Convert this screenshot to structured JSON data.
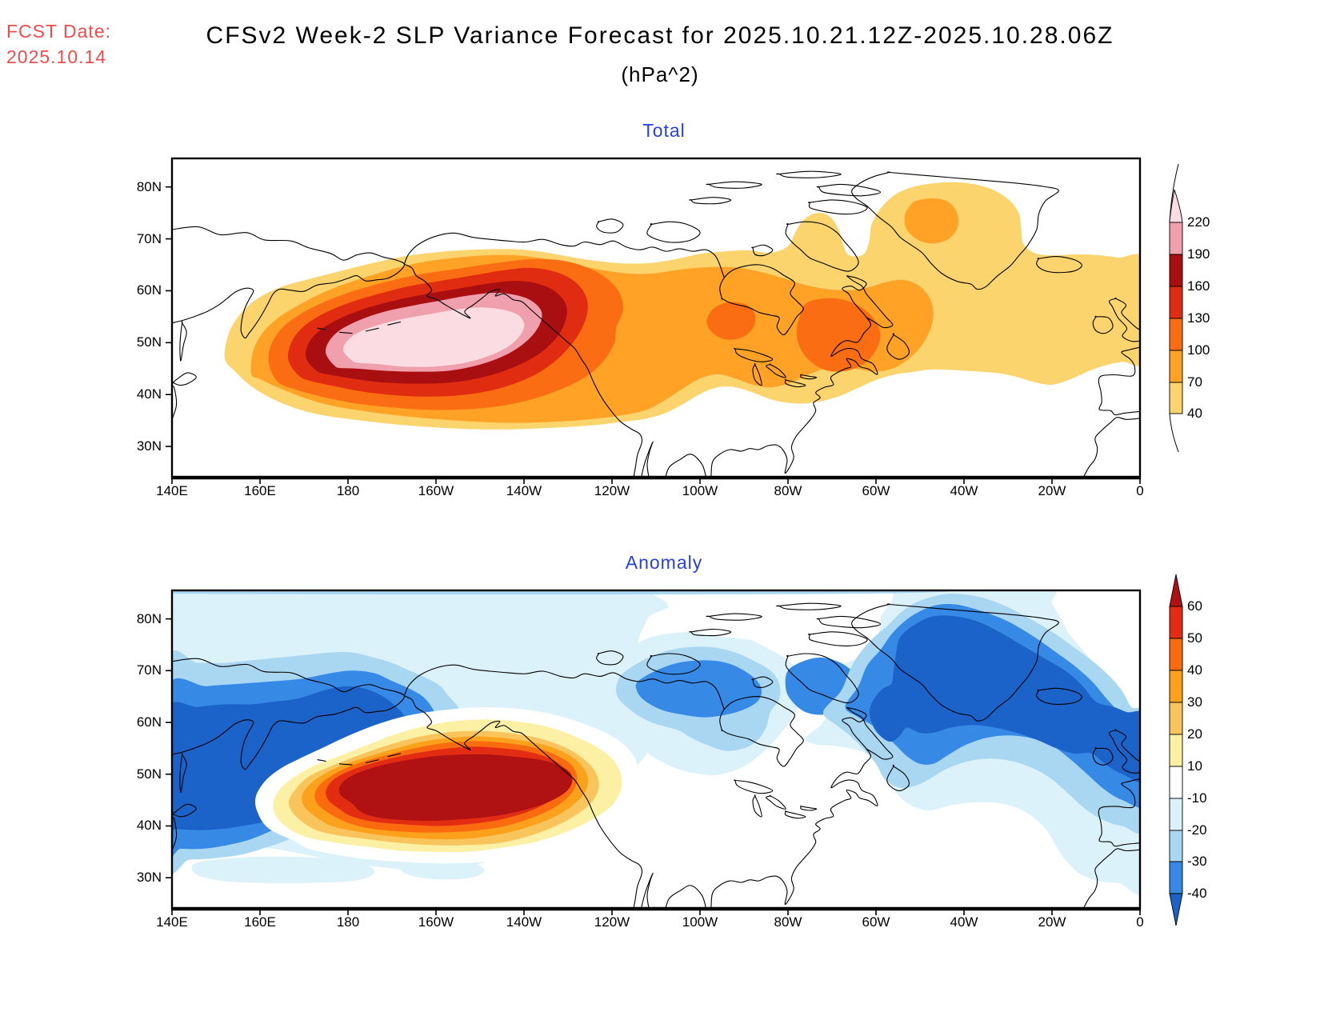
{
  "header": {
    "fcst_label": "FCST Date:",
    "fcst_date": "2025.10.14",
    "title": "CFSv2 Week-2 SLP Variance Forecast for 2025.10.21.12Z-2025.10.28.06Z",
    "subtitle": "(hPa^2)"
  },
  "colors": {
    "fcst_red": "#F34B4B",
    "panel_title_blue": "#2840E0",
    "coastline": "#000000",
    "frame": "#000000"
  },
  "panels": [
    {
      "title": "Total",
      "lat_tick_labels": [
        "80N",
        "70N",
        "60N",
        "50N",
        "40N",
        "30N"
      ],
      "lat_tick_values": [
        80,
        70,
        60,
        50,
        40,
        30
      ],
      "lon_tick_labels": [
        "140E",
        "160E",
        "180",
        "160W",
        "140W",
        "120W",
        "100W",
        "80W",
        "60W",
        "40W",
        "20W",
        "0"
      ],
      "lon_tick_values": [
        140,
        160,
        180,
        200,
        220,
        240,
        260,
        280,
        300,
        320,
        340,
        360
      ],
      "colorbar": {
        "labels": [
          "220",
          "190",
          "160",
          "130",
          "100",
          "70",
          "40"
        ],
        "segment_colors": [
          "#F0A0AC",
          "#A90F10",
          "#E02C10",
          "#FB6D12",
          "#FFA226",
          "#FBD46E"
        ],
        "taper_color": "#FADCE2",
        "end_style": "curved-taper"
      }
    },
    {
      "title": "Anomaly",
      "lat_tick_labels": [
        "80N",
        "70N",
        "60N",
        "50N",
        "40N",
        "30N"
      ],
      "lat_tick_values": [
        80,
        70,
        60,
        50,
        40,
        30
      ],
      "lon_tick_labels": [
        "140E",
        "160E",
        "180",
        "160W",
        "140W",
        "120W",
        "100W",
        "80W",
        "60W",
        "40W",
        "20W",
        "0"
      ],
      "lon_tick_values": [
        140,
        160,
        180,
        200,
        220,
        240,
        260,
        280,
        300,
        320,
        340,
        360
      ],
      "colorbar": {
        "labels": [
          "60",
          "50",
          "40",
          "30",
          "20",
          "10",
          "-10",
          "-20",
          "-30",
          "-40"
        ],
        "segment_colors": [
          "#E22D12",
          "#FA6B10",
          "#FCA11C",
          "#FAC45C",
          "#FCF0A4",
          "#FFFFFF",
          "#DCF2FA",
          "#A9D7F2",
          "#3789E6"
        ],
        "top_triangle_color": "#B01113",
        "bottom_triangle_color": "#1B63C9",
        "end_style": "filled-triangles"
      }
    }
  ],
  "chart_data": [
    {
      "type": "heatmap",
      "subtype": "filled-contour-map",
      "title": "Total",
      "units": "hPa^2",
      "projection": "equirectangular",
      "lon_ticks": [
        "140E",
        "160E",
        "180",
        "160W",
        "140W",
        "120W",
        "100W",
        "80W",
        "60W",
        "40W",
        "20W",
        "0"
      ],
      "lat_ticks": [
        "30N",
        "40N",
        "50N",
        "60N",
        "70N",
        "80N"
      ],
      "contour_levels": [
        40,
        70,
        100,
        130,
        160,
        190,
        220
      ],
      "level_colors": [
        "#FBD46E",
        "#FFA226",
        "#FB6D12",
        "#E02C10",
        "#A90F10",
        "#F0A0AC",
        "#FADCE2"
      ],
      "features": [
        {
          "region": "North Pacific storm track maximum, 170E-135W at 42-55N",
          "value": ">220"
        },
        {
          "region": "Gulf of Alaska / British Columbia coast extension",
          "value": "100-160"
        },
        {
          "region": "Central Canada and Hudson Bay band",
          "value": "70-100"
        },
        {
          "region": "Quebec / Gulf of St. Lawrence patch",
          "value": "100-130"
        },
        {
          "region": "Greenland-Iceland area blob, 45W-27W at 70-77N",
          "value": "70-100"
        },
        {
          "region": "North Atlantic band reaching British Isles, 40-67N",
          "value": "40-70"
        }
      ]
    },
    {
      "type": "heatmap",
      "subtype": "filled-contour-map",
      "title": "Anomaly",
      "units": "hPa^2",
      "projection": "equirectangular",
      "lon_ticks": [
        "140E",
        "160E",
        "180",
        "160W",
        "140W",
        "120W",
        "100W",
        "80W",
        "60W",
        "40W",
        "20W",
        "0"
      ],
      "lat_ticks": [
        "30N",
        "40N",
        "50N",
        "60N",
        "70N",
        "80N"
      ],
      "contour_levels": [
        -40,
        -30,
        -20,
        -10,
        10,
        20,
        30,
        40,
        50,
        60
      ],
      "level_colors": [
        "#1B63C9",
        "#3789E6",
        "#A9D7F2",
        "#DCF2FA",
        "#FFFFFF",
        "#FCF0A4",
        "#FAC45C",
        "#FCA11C",
        "#FA6B10",
        "#E22D12",
        "#B01113"
      ],
      "features": [
        {
          "region": "North Pacific positive anomaly core, 175E-125W at 40-56N",
          "value": ">+60"
        },
        {
          "region": "NW Pacific / Okhotsk / Bering Sea negative region",
          "value": "< -40"
        },
        {
          "region": "Canadian Arctic north of Hudson Bay",
          "value": "-30 to -40"
        },
        {
          "region": "Greenland / Iceland / NE Atlantic negative region",
          "value": "< -40"
        },
        {
          "region": "Broad weak negative cover over Arctic and mid-latitudes",
          "value": "-10 to -20"
        }
      ]
    }
  ]
}
